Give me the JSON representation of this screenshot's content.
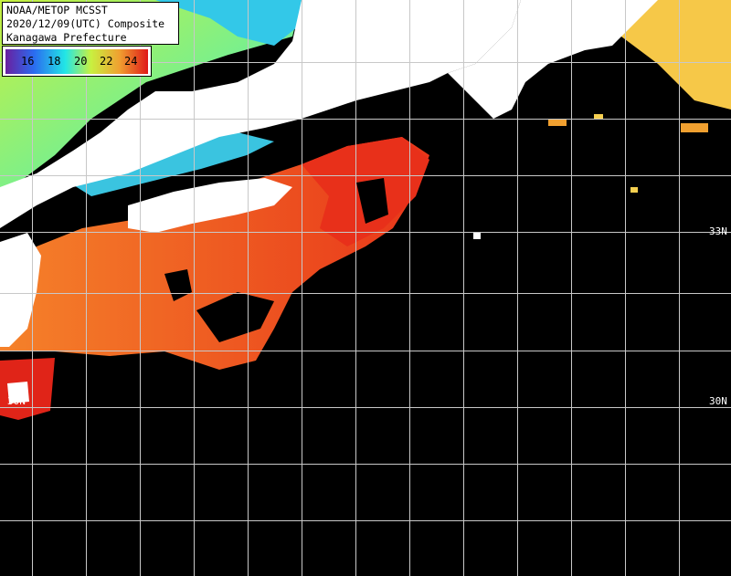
{
  "title": {
    "line1": "NOAA/METOP MCSST",
    "line2": "2020/12/09(UTC) Composite",
    "line3": "Kanagawa Prefecture"
  },
  "legend": {
    "ticks": [
      "16",
      "18",
      "20",
      "22",
      "24"
    ],
    "colors": [
      "#6a1fa0",
      "#2a6cf0",
      "#22e6e6",
      "#c8f040",
      "#f0a030",
      "#e01818"
    ]
  },
  "lat_labels": {
    "right_top": "33N",
    "right_bottom": "30N",
    "left_bottom": "30N"
  },
  "colors": {
    "land": "#ffffff",
    "cloud": "#000000",
    "grid": "#c8c8c8",
    "warm": "#f06a20",
    "hot": "#e8361a"
  }
}
